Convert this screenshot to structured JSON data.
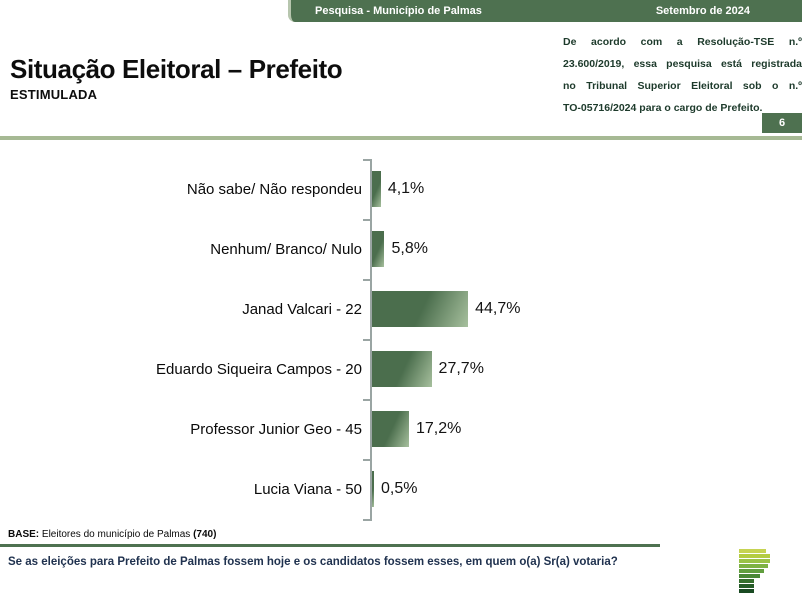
{
  "header": {
    "left_title": "Pesquisa - Município de Palmas",
    "right_title": "Setembro de 2024"
  },
  "title": {
    "main": "Situação Eleitoral – Prefeito",
    "subtitle": "ESTIMULADA"
  },
  "legal_note": {
    "full_text": "De acordo com a Resolução-TSE n.º 23.600/2019, essa pesquisa está registrada no Tribunal Superior Eleitoral sob o n.º TO-05716/2024 para o cargo de Prefeito.",
    "lines": [
      "De acordo com a Resolução-TSE n.º",
      "23.600/2019, essa pesquisa está registrada",
      "no Tribunal Superior Eleitoral sob o n.º",
      "TO-05716/2024 para o cargo de Prefeito."
    ]
  },
  "page_number": "6",
  "chart_data": {
    "type": "bar",
    "orientation": "horizontal",
    "title": "Situação Eleitoral – Prefeito (Estimulada)",
    "categories": [
      "Não sabe/ Não respondeu",
      "Nenhum/ Branco/ Nulo",
      "Janad Valcari - 22",
      "Eduardo Siqueira Campos - 20",
      "Professor Junior Geo - 45",
      "Lucia Viana - 50"
    ],
    "values": [
      4.1,
      5.8,
      44.7,
      27.7,
      17.2,
      0.5
    ],
    "values_display": [
      "4,1%",
      "5,8%",
      "44,7%",
      "27,7%",
      "17,2%",
      "0,5%"
    ],
    "unit": "%",
    "xlim": [
      0,
      100
    ],
    "grid": false,
    "legend": false,
    "bar_color": "#4b6e4d",
    "bar_gradient_end": "#a7c09e",
    "axis_color": "#9aa5a3"
  },
  "base_note": {
    "label": "BASE:",
    "text": " Eleitores do município de Palmas ",
    "count": "(740)"
  },
  "question": "Se as eleições para Prefeito de Palmas fossem hoje e os candidatos fossem esses, em quem o(a) Sr(a) votaria?",
  "colors": {
    "accent_green": "#4e7150",
    "sage_line": "#a6b994",
    "legal_text": "#1d3a2b",
    "question_text": "#20324f"
  },
  "logo": {
    "name": "striped-p-logo",
    "stripes": [
      {
        "width": 27,
        "color": "#c6d352"
      },
      {
        "width": 31,
        "color": "#b4cc42"
      },
      {
        "width": 31,
        "color": "#9ac246"
      },
      {
        "width": 29,
        "color": "#7eb243"
      },
      {
        "width": 25,
        "color": "#619e3e"
      },
      {
        "width": 21,
        "color": "#4a8836"
      },
      {
        "width": 15,
        "color": "#356f2d"
      },
      {
        "width": 15,
        "color": "#265c28"
      },
      {
        "width": 15,
        "color": "#194a22"
      }
    ]
  }
}
